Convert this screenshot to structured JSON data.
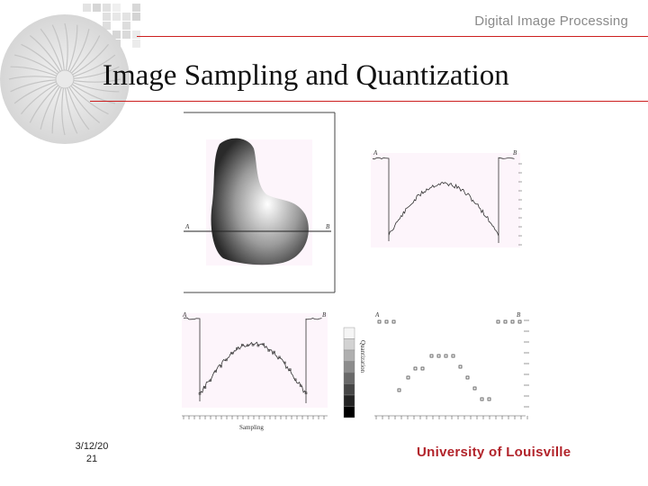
{
  "slide": {
    "header": "Digital Image Processing",
    "title": "Image Sampling and Quantization",
    "footer_date_line1": "3/12/20",
    "footer_date_line2": "21",
    "footer_org": "University of Louisville"
  },
  "figure": {
    "label_a": "A",
    "label_b": "B",
    "xlabel_sampling": "Sampling",
    "ylabel_quantization": "Quantization"
  },
  "colors": {
    "accent_red": "#cc1f1f",
    "org_text": "#b2232a",
    "header_gray": "#8a8a8a",
    "panel_bg": "#fdf5fb"
  }
}
